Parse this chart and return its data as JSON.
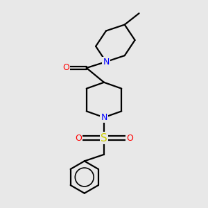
{
  "bg_color": "#e8e8e8",
  "atom_colors": {
    "N": "#0000ff",
    "O": "#ff0000",
    "S": "#cccc00",
    "C": "#000000"
  },
  "bond_color": "#000000",
  "bond_width": 1.6,
  "font_size_atom": 9
}
